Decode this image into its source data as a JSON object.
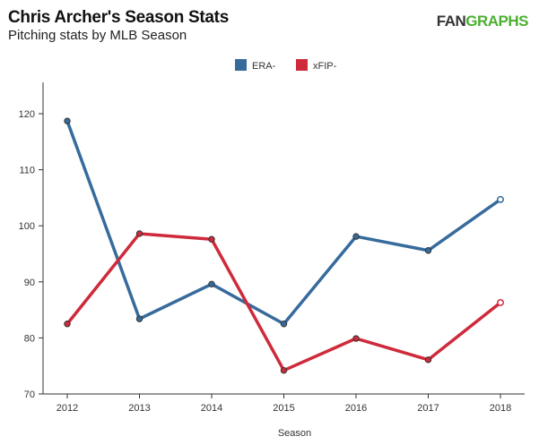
{
  "chart_data": {
    "type": "line",
    "title": "Chris Archer's Season Stats",
    "subtitle": "Pitching stats by MLB Season",
    "logo": {
      "left": "FAN",
      "right": "GRAPHS"
    },
    "xlabel": "Season",
    "ylabel": "",
    "x": [
      "2012",
      "2013",
      "2014",
      "2015",
      "2016",
      "2017",
      "2018"
    ],
    "ylim": [
      70,
      120
    ],
    "yticks": [
      70,
      80,
      90,
      100,
      110,
      120
    ],
    "legend_position": "top-center",
    "series": [
      {
        "name": "ERA-",
        "color": "#366b9c",
        "values": [
          118.7,
          83.4,
          89.6,
          82.5,
          98.1,
          95.6,
          104.7
        ]
      },
      {
        "name": "xFIP-",
        "color": "#cf2a3b",
        "values": [
          82.5,
          98.6,
          97.6,
          74.2,
          79.9,
          76.1,
          86.3
        ]
      }
    ]
  }
}
